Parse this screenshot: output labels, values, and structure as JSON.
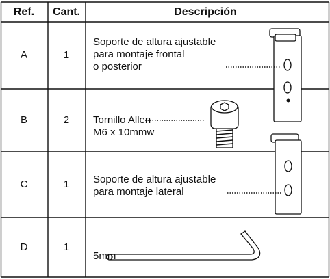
{
  "table": {
    "header": [
      "Ref.",
      "Cant.",
      "Descripción"
    ],
    "rows": [
      {
        "ref": "A",
        "qty": "1",
        "description": [
          "Soporte de altura ajustable",
          "para montaje frontal",
          "o posterior"
        ]
      },
      {
        "ref": "B",
        "qty": "2",
        "description": [
          "Tornillo Allen",
          "M6 x 10mmw"
        ]
      },
      {
        "ref": "C",
        "qty": "1",
        "description": [
          "Soporte de altura ajustable",
          "para montaje lateral"
        ]
      },
      {
        "ref": "D",
        "qty": "1",
        "description": [
          "5mm"
        ]
      }
    ]
  }
}
